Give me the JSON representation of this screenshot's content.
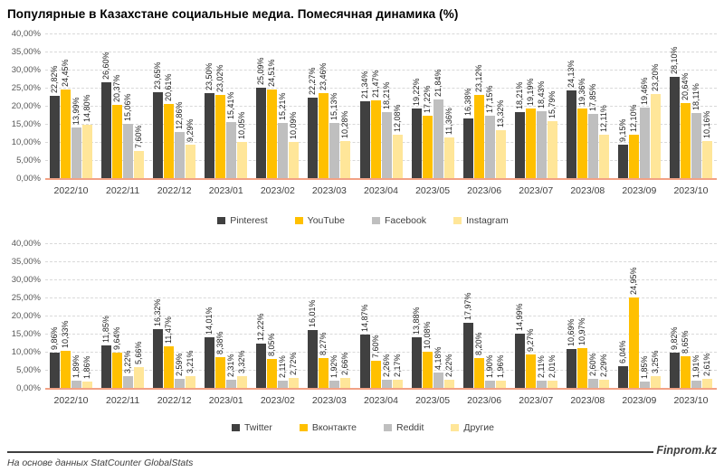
{
  "title": "Популярные в Казахстане социальные медиа. Помесячная динамика (%)",
  "footer": {
    "source": "На основе данных StatCounter GlobalStats",
    "brand": "Finprom.kz"
  },
  "colors": {
    "axis_line": "#F2A285",
    "gridline": "#D9D9D9",
    "data_label": "#1f1f1f"
  },
  "chart_data": [
    {
      "type": "bar",
      "title": "",
      "xlabel": "",
      "ylabel": "",
      "grid": true,
      "legend_position": "bottom",
      "ylim": [
        0,
        40
      ],
      "y_tick_step": 5,
      "y_tick_labels": [
        "0,00%",
        "5,00%",
        "10,00%",
        "15,00%",
        "20,00%",
        "25,00%",
        "30,00%",
        "35,00%",
        "40,00%"
      ],
      "data_label_format": "#,##0.00% (comma decimal, rotated 90deg)",
      "categories": [
        "2022/10",
        "2022/11",
        "2022/12",
        "2023/01",
        "2023/02",
        "2023/03",
        "2023/04",
        "2023/05",
        "2023/06",
        "2023/07",
        "2023/08",
        "2023/09",
        "2023/10"
      ],
      "series": [
        {
          "name": "Pinterest",
          "color": "#404040",
          "values": [
            22.82,
            26.6,
            23.65,
            23.5,
            25.09,
            22.27,
            21.34,
            19.22,
            16.38,
            18.21,
            24.13,
            9.15,
            28.1
          ]
        },
        {
          "name": "YouTube",
          "color": "#FFC000",
          "values": [
            24.45,
            20.37,
            20.61,
            23.02,
            24.51,
            23.46,
            21.47,
            17.22,
            23.12,
            19.19,
            19.36,
            12.1,
            20.64
          ]
        },
        {
          "name": "Facebook",
          "color": "#BFBFBF",
          "values": [
            13.99,
            15.06,
            12.86,
            15.41,
            15.21,
            15.13,
            18.21,
            21.84,
            17.15,
            18.43,
            17.85,
            19.46,
            18.11
          ]
        },
        {
          "name": "Instagram",
          "color": "#FFE699",
          "values": [
            14.8,
            7.6,
            9.29,
            10.05,
            10.09,
            10.28,
            12.08,
            11.36,
            13.32,
            15.79,
            12.11,
            23.2,
            10.16
          ]
        }
      ]
    },
    {
      "type": "bar",
      "title": "",
      "xlabel": "",
      "ylabel": "",
      "grid": true,
      "legend_position": "bottom",
      "ylim": [
        0,
        40
      ],
      "y_tick_step": 5,
      "y_tick_labels": [
        "0,00%",
        "5,00%",
        "10,00%",
        "15,00%",
        "20,00%",
        "25,00%",
        "30,00%",
        "35,00%",
        "40,00%"
      ],
      "data_label_format": "#,##0.00% (comma decimal, rotated 90deg)",
      "categories": [
        "2022/10",
        "2022/11",
        "2022/12",
        "2023/01",
        "2023/02",
        "2023/03",
        "2023/04",
        "2023/05",
        "2023/06",
        "2023/07",
        "2023/08",
        "2023/09",
        "2023/10"
      ],
      "series": [
        {
          "name": "Twitter",
          "color": "#404040",
          "values": [
            9.86,
            11.85,
            16.32,
            14.01,
            12.22,
            16.01,
            14.87,
            13.88,
            17.97,
            14.99,
            10.69,
            6.04,
            9.82
          ]
        },
        {
          "name": "Вконтакте",
          "color": "#FFC000",
          "values": [
            10.33,
            9.64,
            11.47,
            8.38,
            8.05,
            8.27,
            7.6,
            10.08,
            8.2,
            9.27,
            10.97,
            24.95,
            8.65
          ]
        },
        {
          "name": "Reddit",
          "color": "#BFBFBF",
          "values": [
            1.89,
            3.22,
            2.59,
            2.31,
            2.11,
            1.92,
            2.26,
            4.18,
            1.9,
            2.11,
            2.6,
            1.85,
            1.91
          ]
        },
        {
          "name": "Другие",
          "color": "#FFE699",
          "values": [
            1.86,
            5.66,
            3.21,
            3.32,
            2.72,
            2.66,
            2.17,
            2.22,
            1.96,
            2.01,
            2.29,
            3.25,
            2.61
          ]
        }
      ]
    }
  ]
}
